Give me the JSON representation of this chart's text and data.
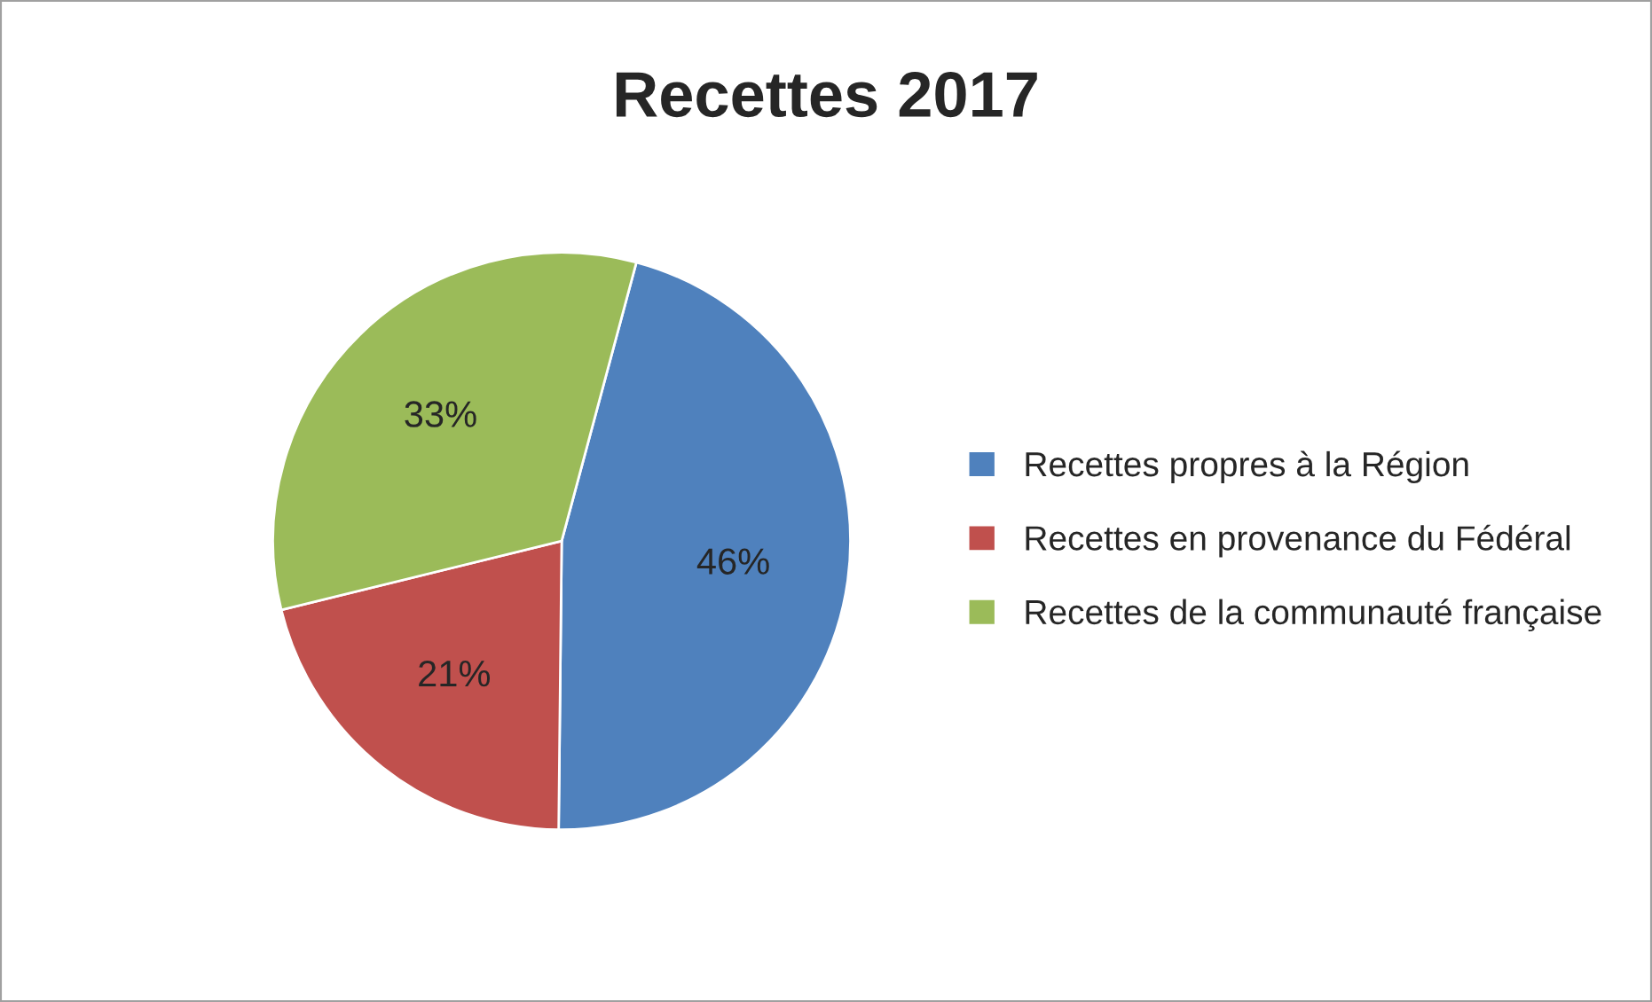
{
  "chart_data": {
    "type": "pie",
    "title": "Recettes 2017",
    "categories": [
      "Recettes propres à la Région",
      "Recettes en provenance du Fédéral",
      "Recettes de la communauté française"
    ],
    "values": [
      46,
      21,
      33
    ],
    "value_labels": [
      "46%",
      "21%",
      "33%"
    ],
    "colors": [
      "#4f81bd",
      "#c0504d",
      "#9bbb59"
    ],
    "legend": "right"
  }
}
